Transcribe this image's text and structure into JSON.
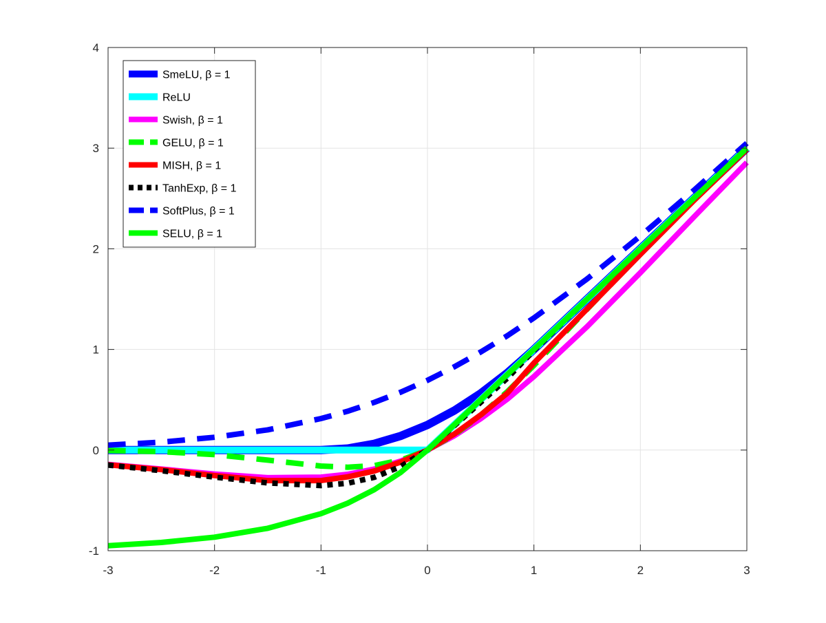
{
  "chart_data": {
    "type": "line",
    "title": "",
    "xlabel": "",
    "ylabel": "",
    "xlim": [
      -3,
      3
    ],
    "ylim": [
      -1,
      4
    ],
    "grid": true,
    "legend_position": "top-left",
    "x_ticks": [
      -3,
      -2,
      -1,
      0,
      1,
      2,
      3
    ],
    "y_ticks": [
      -1,
      0,
      1,
      2,
      3,
      4
    ],
    "x_tick_labels": [
      "-3",
      "-2",
      "-1",
      "0",
      "1",
      "2",
      "3"
    ],
    "y_tick_labels": [
      "-1",
      "0",
      "1",
      "2",
      "3",
      "4"
    ],
    "x": [
      -3,
      -2.5,
      -2,
      -1.5,
      -1,
      -0.75,
      -0.5,
      -0.25,
      0,
      0.25,
      0.5,
      0.75,
      1,
      1.5,
      2,
      2.5,
      3
    ],
    "series": [
      {
        "name": "SmeLU, β = 1",
        "color": "#0000ff",
        "style": "solid",
        "width": 12,
        "values": [
          0,
          0,
          0,
          0,
          0,
          0.016,
          0.063,
          0.141,
          0.25,
          0.391,
          0.563,
          0.766,
          1,
          1.5,
          2,
          2.5,
          3
        ]
      },
      {
        "name": "ReLU",
        "color": "#00ffff",
        "style": "solid",
        "width": 10,
        "values": [
          0,
          0,
          0,
          0,
          0,
          0,
          0,
          0,
          0,
          0.25,
          0.5,
          0.75,
          1,
          1.5,
          2,
          2.5,
          3
        ]
      },
      {
        "name": "Swish, β = 1",
        "color": "#ff00ff",
        "style": "solid",
        "width": 8,
        "values": [
          -0.142,
          -0.189,
          -0.238,
          -0.274,
          -0.269,
          -0.241,
          -0.189,
          -0.109,
          0,
          0.141,
          0.311,
          0.506,
          0.731,
          1.227,
          1.762,
          2.313,
          2.858
        ]
      },
      {
        "name": "GELU, β = 1",
        "color": "#00ff00",
        "style": "dashed",
        "width": 8,
        "values": [
          -0.004,
          -0.016,
          -0.045,
          -0.1,
          -0.159,
          -0.17,
          -0.154,
          -0.1,
          0,
          0.15,
          0.346,
          0.58,
          0.841,
          1.4,
          1.955,
          2.484,
          2.996
        ]
      },
      {
        "name": "MISH, β = 1",
        "color": "#ff0000",
        "style": "solid",
        "width": 8,
        "values": [
          -0.146,
          -0.194,
          -0.253,
          -0.303,
          -0.303,
          -0.266,
          -0.208,
          -0.119,
          0,
          0.158,
          0.349,
          0.566,
          0.865,
          1.403,
          1.944,
          2.477,
          2.987
        ]
      },
      {
        "name": "TanhExp, β = 1",
        "color": "#000000",
        "style": "dotted",
        "width": 8,
        "values": [
          -0.149,
          -0.205,
          -0.269,
          -0.326,
          -0.353,
          -0.33,
          -0.271,
          -0.163,
          0,
          0.24,
          0.474,
          0.714,
          0.991,
          1.5,
          2,
          2.5,
          3
        ]
      },
      {
        "name": "SoftPlus, β = 1",
        "color": "#0000ff",
        "style": "dashed",
        "width": 8,
        "values": [
          0.049,
          0.079,
          0.127,
          0.201,
          0.313,
          0.386,
          0.474,
          0.576,
          0.693,
          0.826,
          0.974,
          1.136,
          1.313,
          1.701,
          2.127,
          2.579,
          3.049
        ]
      },
      {
        "name": "SELU, β = 1",
        "color": "#00ff00",
        "style": "solid",
        "width": 8,
        "values": [
          -0.95,
          -0.918,
          -0.865,
          -0.777,
          -0.632,
          -0.528,
          -0.393,
          -0.221,
          0,
          0.25,
          0.5,
          0.75,
          1,
          1.5,
          2,
          2.5,
          3
        ]
      }
    ]
  }
}
